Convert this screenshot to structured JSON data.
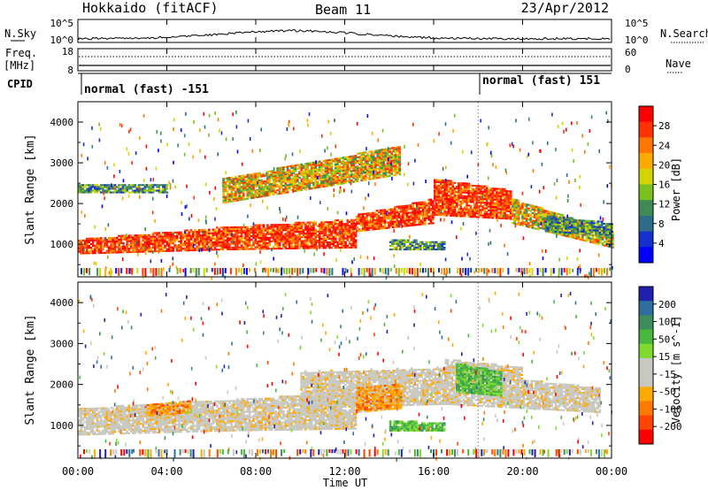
{
  "header": {
    "station": "Hokkaido (fitACF)",
    "beam": "Beam 11",
    "date": "23/Apr/2012"
  },
  "top_panels": {
    "nsky_label": "N.Sky",
    "nsky_ticks": [
      "10^5",
      "10^0"
    ],
    "nsearch_label": "N.Search",
    "freq_label": "Freq.",
    "freq_unit": "[MHz]",
    "freq_ticks": [
      "18",
      "8"
    ],
    "nave_label": "Nave",
    "nave_ticks": [
      "60",
      "0"
    ],
    "cpid_label": "CPID",
    "cpid_segments": [
      {
        "text": "normal (fast) -151",
        "start_hour": 0
      },
      {
        "text": "normal (fast) 151",
        "start_hour": 18
      }
    ]
  },
  "time_axis": {
    "label": "Time UT",
    "ticks": [
      "00:00",
      "04:00",
      "08:00",
      "12:00",
      "16:00",
      "20:00",
      "00:00"
    ]
  },
  "chart_data": [
    {
      "type": "heatmap",
      "name": "power",
      "ylabel": "Slant Range [km]",
      "xlim": [
        0,
        24
      ],
      "ylim": [
        200,
        4500
      ],
      "yticks": [
        1000,
        2000,
        3000,
        4000
      ],
      "colorbar_label": "Power [dB]",
      "colorbar_ticks": [
        "28",
        "24",
        "20",
        "16",
        "12",
        "8",
        "4"
      ],
      "colors": [
        "#ff0000",
        "#ff3300",
        "#ff7700",
        "#ffaa00",
        "#d4d400",
        "#79c021",
        "#3f8a55",
        "#2e6d88",
        "#1431cc",
        "#0000ff"
      ],
      "features": [
        {
          "h0": 0.0,
          "h1": 6.5,
          "r0": 750,
          "r1": 1100,
          "r0_end": 850,
          "r1_end": 1400,
          "level": "high"
        },
        {
          "h0": 6.5,
          "h1": 12.5,
          "r0": 850,
          "r1": 1400,
          "r0_end": 900,
          "r1_end": 1600,
          "level": "high"
        },
        {
          "h0": 12.5,
          "h1": 16.0,
          "r0": 1300,
          "r1": 1700,
          "r0_end": 1500,
          "r1_end": 2100,
          "level": "high"
        },
        {
          "h0": 16.0,
          "h1": 19.5,
          "r0": 1700,
          "r1": 2600,
          "r0_end": 1600,
          "r1_end": 2300,
          "level": "high"
        },
        {
          "h0": 19.5,
          "h1": 24.0,
          "r0": 1500,
          "r1": 2100,
          "r0_end": 900,
          "r1_end": 1300,
          "level": "mid"
        },
        {
          "h0": 14.0,
          "h1": 16.5,
          "r0": 850,
          "r1": 1100,
          "r0_end": 850,
          "r1_end": 1050,
          "level": "low"
        },
        {
          "h0": 0.0,
          "h1": 4.0,
          "r0": 2250,
          "r1": 2450,
          "r0_end": 2250,
          "r1_end": 2450,
          "level": "low"
        },
        {
          "h0": 6.5,
          "h1": 14.5,
          "r0": 2000,
          "r1": 2600,
          "r0_end": 2700,
          "r1_end": 3400,
          "level": "mid"
        },
        {
          "h0": 21.0,
          "h1": 24.0,
          "r0": 1300,
          "r1": 1700,
          "r0_end": 1200,
          "r1_end": 1500,
          "level": "low"
        }
      ]
    },
    {
      "type": "heatmap",
      "name": "velocity",
      "ylabel": "Slant Range [km]",
      "xlim": [
        0,
        24
      ],
      "ylim": [
        200,
        4500
      ],
      "yticks": [
        1000,
        2000,
        3000,
        4000
      ],
      "colorbar_label": "Velocity [m s^-1]",
      "colorbar_ticks": [
        "200",
        "100",
        "50",
        "15",
        "-15",
        "-50",
        "-100",
        "-200"
      ],
      "colors": [
        "#2020b0",
        "#2f6f9f",
        "#3d8d5d",
        "#47b83d",
        "#7fdc2f",
        "#c8c8c0",
        "#c8c8c0",
        "#ffaa00",
        "#ff7a00",
        "#ff4400",
        "#ff0000"
      ],
      "features": [
        {
          "h0": 0.0,
          "h1": 6.5,
          "r0": 750,
          "r1": 1400,
          "r0_end": 850,
          "r1_end": 1600,
          "level": "gray"
        },
        {
          "h0": 6.5,
          "h1": 12.5,
          "r0": 850,
          "r1": 1600,
          "r0_end": 900,
          "r1_end": 1800,
          "level": "gray"
        },
        {
          "h0": 10.0,
          "h1": 16.5,
          "r0": 1400,
          "r1": 2300,
          "r0_end": 1500,
          "r1_end": 2400,
          "level": "gray"
        },
        {
          "h0": 16.5,
          "h1": 20.0,
          "r0": 1500,
          "r1": 2600,
          "r0_end": 1400,
          "r1_end": 2400,
          "level": "gray"
        },
        {
          "h0": 20.0,
          "h1": 23.5,
          "r0": 1400,
          "r1": 2100,
          "r0_end": 1300,
          "r1_end": 1900,
          "level": "gray"
        },
        {
          "h0": 14.0,
          "h1": 16.5,
          "r0": 850,
          "r1": 1100,
          "r0_end": 850,
          "r1_end": 1050,
          "level": "green"
        },
        {
          "h0": 3.0,
          "h1": 5.0,
          "r0": 1200,
          "r1": 1500,
          "r0_end": 1300,
          "r1_end": 1600,
          "level": "orange"
        },
        {
          "h0": 12.5,
          "h1": 14.5,
          "r0": 1300,
          "r1": 1900,
          "r0_end": 1400,
          "r1_end": 2000,
          "level": "orange"
        },
        {
          "h0": 17.0,
          "h1": 19.0,
          "r0": 1800,
          "r1": 2500,
          "r0_end": 1700,
          "r1_end": 2300,
          "level": "green"
        }
      ]
    }
  ]
}
